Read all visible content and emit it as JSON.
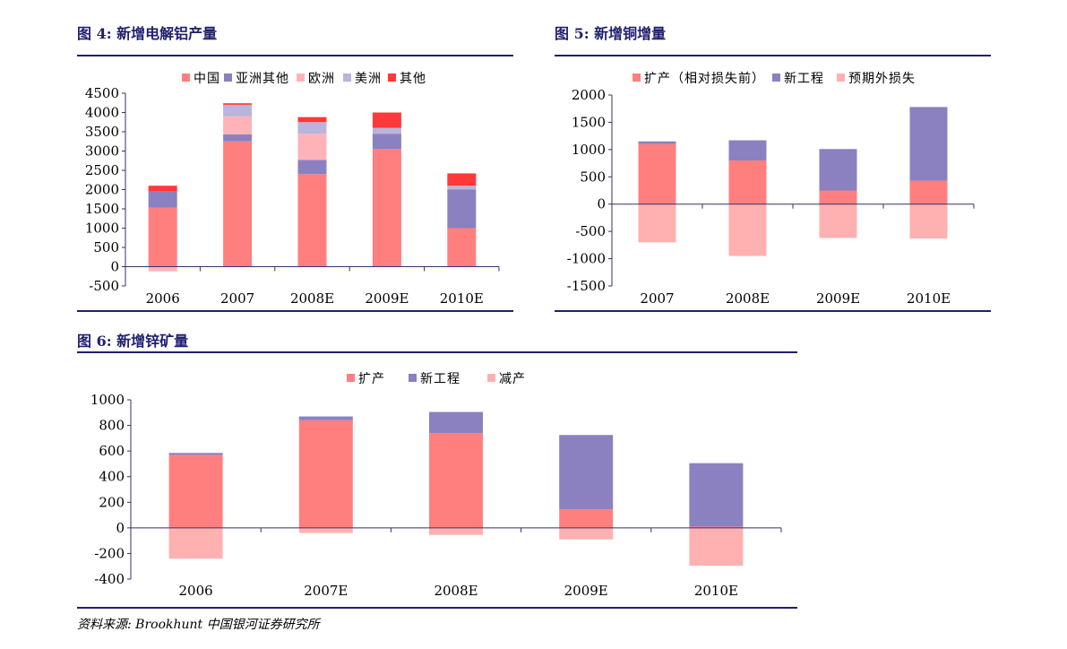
{
  "figures": [
    {
      "title": "图 4:  新增电解铝产量"
    },
    {
      "title": "图 5:  新增铜增量"
    },
    {
      "title": "图 6:  新增锌矿量"
    }
  ],
  "source": "资料来源: Brookhunt 中国银河证券研究所",
  "colors": {
    "rule": "#1f1f6e",
    "axis": "#333366",
    "expand": "#ff7f7f",
    "new_project": "#8b80c0",
    "reduce": "#ffb0b0",
    "europe": "#ffb3b8",
    "america": "#b8b4dc",
    "other": "#ff3838"
  },
  "chart_data": [
    {
      "type": "bar",
      "stacked": true,
      "categories": [
        "2006",
        "2007",
        "2008E",
        "2009E",
        "2010E"
      ],
      "ylim": [
        -500,
        4500
      ],
      "yticks": [
        "4500",
        "4000",
        "3500",
        "3000",
        "2500",
        "2000",
        "1500",
        "1000",
        "500",
        "0",
        "-500"
      ],
      "legend_position": "top",
      "series": [
        {
          "name": "中国",
          "color": "#ff7f7f",
          "values": [
            1530,
            3250,
            2400,
            3050,
            1000
          ]
        },
        {
          "name": "亚洲其他",
          "color": "#8b80c0",
          "values": [
            420,
            180,
            370,
            400,
            1000
          ]
        },
        {
          "name": "欧洲",
          "color": "#ffb3b8",
          "values": [
            -120,
            470,
            680,
            0,
            0
          ]
        },
        {
          "name": "美洲",
          "color": "#b8b4dc",
          "values": [
            0,
            300,
            300,
            150,
            100
          ]
        },
        {
          "name": "其他",
          "color": "#ff3838",
          "values": [
            150,
            40,
            130,
            400,
            320
          ]
        }
      ]
    },
    {
      "type": "bar",
      "stacked": true,
      "categories": [
        "2007",
        "2008E",
        "2009E",
        "2010E"
      ],
      "ylim": [
        -1500,
        2000
      ],
      "yticks": [
        "2000",
        "1500",
        "1000",
        "500",
        "0",
        "-500",
        "-1000",
        "-1500"
      ],
      "legend_position": "top",
      "series": [
        {
          "name": "扩产（相对损失前）",
          "color": "#ff7f7f",
          "values": [
            1100,
            800,
            250,
            430
          ]
        },
        {
          "name": "新工程",
          "color": "#8b80c0",
          "values": [
            50,
            370,
            760,
            1350
          ]
        },
        {
          "name": "预期外损失",
          "color": "#ffb0b0",
          "values": [
            -700,
            -950,
            -620,
            -630
          ]
        }
      ]
    },
    {
      "type": "bar",
      "stacked": true,
      "categories": [
        "2006",
        "2007E",
        "2008E",
        "2009E",
        "2010E"
      ],
      "ylim": [
        -400,
        1000
      ],
      "yticks": [
        "1000",
        "800",
        "600",
        "400",
        "200",
        "0",
        "-200",
        "-400"
      ],
      "legend_position": "top",
      "series": [
        {
          "name": "扩产",
          "color": "#ff7f7f",
          "values": [
            570,
            840,
            740,
            145,
            10
          ]
        },
        {
          "name": "新工程",
          "color": "#8b80c0",
          "values": [
            15,
            30,
            165,
            580,
            495
          ]
        },
        {
          "name": "减产",
          "color": "#ffb0b0",
          "values": [
            -240,
            -40,
            -55,
            -90,
            -295
          ]
        }
      ]
    }
  ]
}
